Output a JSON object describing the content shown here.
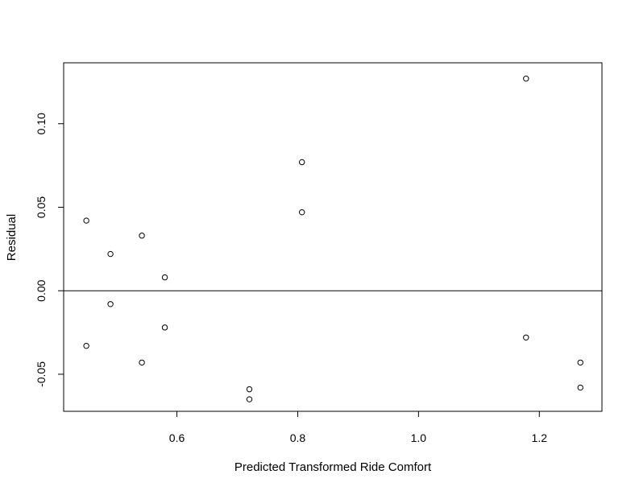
{
  "chart_data": {
    "type": "scatter",
    "title": "",
    "xlabel": "Predicted Transformed Ride Comfort",
    "ylabel": "Residual",
    "xlim": [
      0.4125,
      1.3037
    ],
    "ylim": [
      -0.0722,
      0.1365
    ],
    "xticks": [
      0.6,
      0.8,
      1.0,
      1.2
    ],
    "xtick_labels": [
      "0.6",
      "0.8",
      "1.0",
      "1.2"
    ],
    "yticks": [
      -0.05,
      0.0,
      0.05,
      0.1
    ],
    "ytick_labels": [
      "-0.05",
      "0.00",
      "0.05",
      "0.10"
    ],
    "reference_line_y": 0,
    "grid": false,
    "legend": "none",
    "points": [
      {
        "x": 0.45,
        "y": 0.042
      },
      {
        "x": 0.45,
        "y": -0.033
      },
      {
        "x": 0.49,
        "y": 0.022
      },
      {
        "x": 0.49,
        "y": -0.008
      },
      {
        "x": 0.542,
        "y": 0.033
      },
      {
        "x": 0.542,
        "y": -0.043
      },
      {
        "x": 0.58,
        "y": 0.008
      },
      {
        "x": 0.58,
        "y": -0.022
      },
      {
        "x": 0.72,
        "y": -0.059
      },
      {
        "x": 0.72,
        "y": -0.065
      },
      {
        "x": 0.807,
        "y": 0.077
      },
      {
        "x": 0.807,
        "y": 0.047
      },
      {
        "x": 1.178,
        "y": 0.127
      },
      {
        "x": 1.178,
        "y": -0.028
      },
      {
        "x": 1.268,
        "y": -0.043
      },
      {
        "x": 1.268,
        "y": -0.058
      }
    ]
  }
}
